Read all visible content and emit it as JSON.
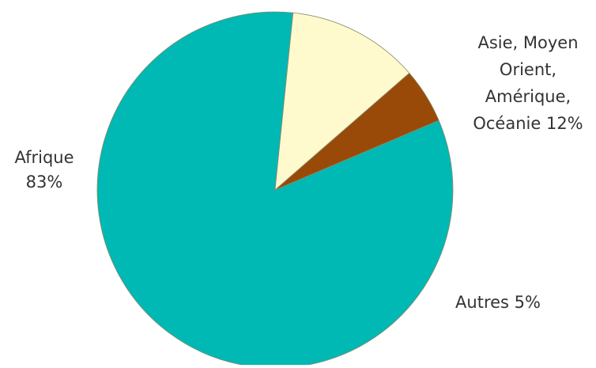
{
  "chart_data": {
    "type": "pie",
    "title": "",
    "slices": [
      {
        "label": "Afrique",
        "value": 83,
        "color": "#00B8B4"
      },
      {
        "label": "Asie, Moyen Orient, Amérique, Océanie",
        "value": 12,
        "color": "#FFFACD"
      },
      {
        "label": "Autres",
        "value": 5,
        "color": "#994A08"
      }
    ],
    "data_labels": [
      {
        "lines": [
          "Afrique",
          "83%"
        ]
      },
      {
        "lines": [
          "Asie, Moyen",
          "Orient,",
          "Amérique,",
          "Océanie 12%"
        ]
      },
      {
        "lines": [
          "Autres 5%"
        ]
      }
    ],
    "legend": "none",
    "start_angle_deg": 337,
    "direction": "clockwise"
  }
}
